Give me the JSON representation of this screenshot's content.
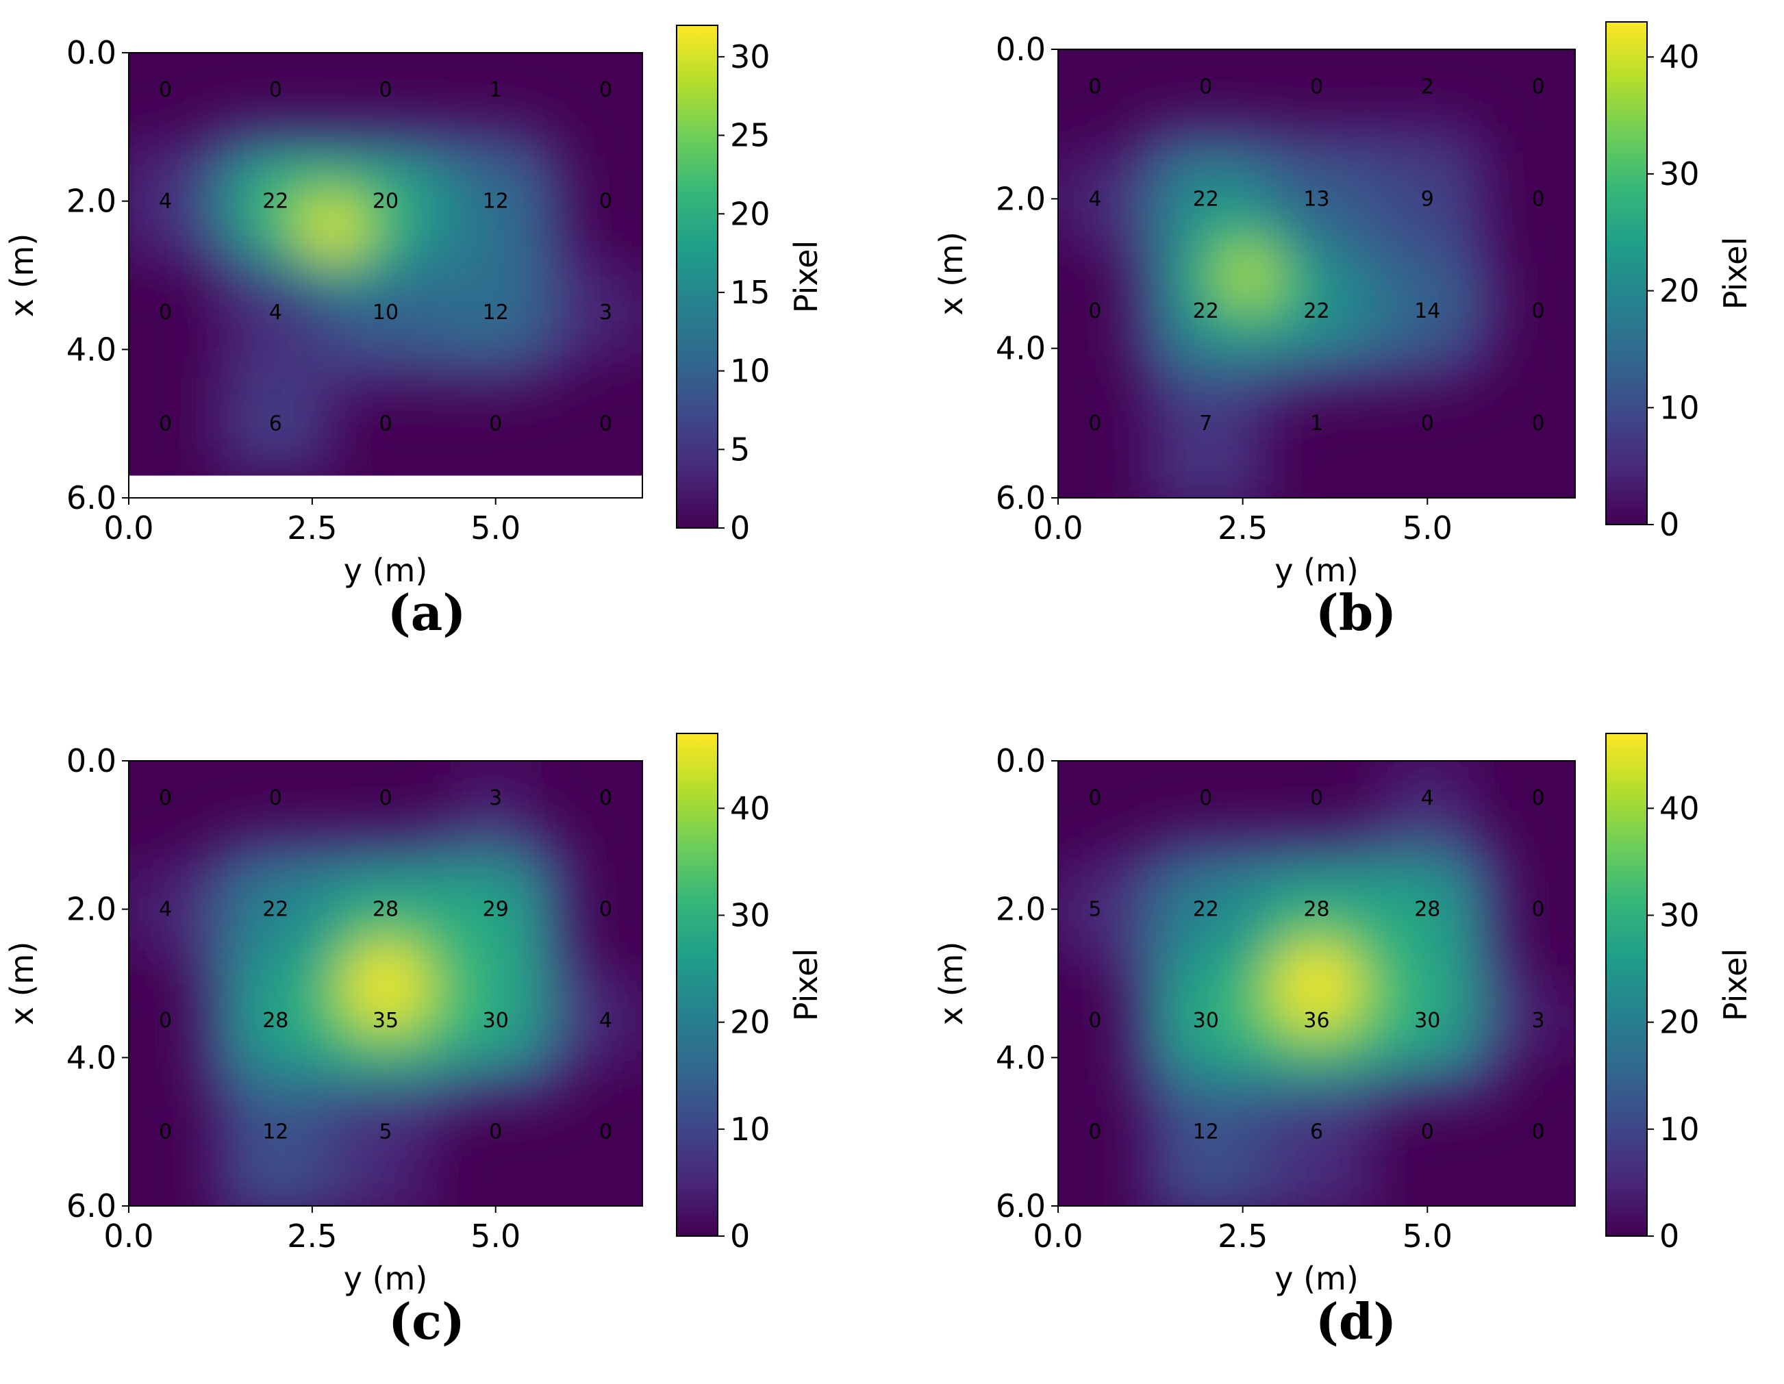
{
  "chart_data": [
    {
      "type": "heatmap",
      "panel_label": "(a)",
      "xlabel": "y (m)",
      "ylabel": "x (m)",
      "x_ticks": [
        "0.0",
        "2.5",
        "5.0"
      ],
      "y_ticks": [
        "0.0",
        "2.0",
        "4.0",
        "6.0"
      ],
      "xlim": [
        0,
        7
      ],
      "ylim": [
        6,
        0
      ],
      "data_extent_rows": 5.7,
      "colorbar": {
        "label": "Pixel",
        "range": [
          0,
          32
        ],
        "ticks": [
          "0",
          "5",
          "10",
          "15",
          "20",
          "25",
          "30"
        ]
      },
      "grid_x": [
        0.5,
        2.0,
        3.5,
        5.0,
        6.5
      ],
      "grid_y": [
        0.5,
        2.0,
        3.5,
        5.0
      ],
      "cell_values": [
        [
          0,
          0,
          0,
          1,
          0
        ],
        [
          4,
          22,
          20,
          12,
          0
        ],
        [
          0,
          4,
          10,
          12,
          3
        ],
        [
          0,
          6,
          0,
          0,
          0
        ]
      ],
      "hotspot": [
        2.8,
        2.5
      ]
    },
    {
      "type": "heatmap",
      "panel_label": "(b)",
      "xlabel": "y (m)",
      "ylabel": "x (m)",
      "x_ticks": [
        "0.0",
        "2.5",
        "5.0"
      ],
      "y_ticks": [
        "0.0",
        "2.0",
        "4.0",
        "6.0"
      ],
      "xlim": [
        0,
        7
      ],
      "ylim": [
        6,
        0
      ],
      "data_extent_rows": 6.0,
      "colorbar": {
        "label": "Pixel",
        "range": [
          0,
          43
        ],
        "ticks": [
          "0",
          "10",
          "20",
          "30",
          "40"
        ]
      },
      "grid_x": [
        0.5,
        2.0,
        3.5,
        5.0,
        6.5
      ],
      "grid_y": [
        0.5,
        2.0,
        3.5,
        5.0
      ],
      "cell_values": [
        [
          0,
          0,
          0,
          2,
          0
        ],
        [
          4,
          22,
          13,
          9,
          0
        ],
        [
          0,
          22,
          22,
          14,
          0
        ],
        [
          0,
          7,
          1,
          0,
          0
        ]
      ],
      "hotspot": [
        2.6,
        3.0
      ]
    },
    {
      "type": "heatmap",
      "panel_label": "(c)",
      "xlabel": "y (m)",
      "ylabel": "x (m)",
      "x_ticks": [
        "0.0",
        "2.5",
        "5.0"
      ],
      "y_ticks": [
        "0.0",
        "2.0",
        "4.0",
        "6.0"
      ],
      "xlim": [
        0,
        7
      ],
      "ylim": [
        6,
        0
      ],
      "data_extent_rows": 6.0,
      "colorbar": {
        "label": "Pixel",
        "range": [
          0,
          47
        ],
        "ticks": [
          "0",
          "10",
          "20",
          "30",
          "40"
        ]
      },
      "grid_x": [
        0.5,
        2.0,
        3.5,
        5.0,
        6.5
      ],
      "grid_y": [
        0.5,
        2.0,
        3.5,
        5.0
      ],
      "cell_values": [
        [
          0,
          0,
          0,
          3,
          0
        ],
        [
          4,
          22,
          28,
          29,
          0
        ],
        [
          0,
          28,
          35,
          30,
          4
        ],
        [
          0,
          12,
          5,
          0,
          0
        ]
      ],
      "hotspot": [
        3.5,
        2.95
      ]
    },
    {
      "type": "heatmap",
      "panel_label": "(d)",
      "xlabel": "y (m)",
      "ylabel": "x (m)",
      "x_ticks": [
        "0.0",
        "2.5",
        "5.0"
      ],
      "y_ticks": [
        "0.0",
        "2.0",
        "4.0",
        "6.0"
      ],
      "xlim": [
        0,
        7
      ],
      "ylim": [
        6,
        0
      ],
      "data_extent_rows": 6.0,
      "colorbar": {
        "label": "Pixel",
        "range": [
          0,
          47
        ],
        "ticks": [
          "0",
          "10",
          "20",
          "30",
          "40"
        ]
      },
      "grid_x": [
        0.5,
        2.0,
        3.5,
        5.0,
        6.5
      ],
      "grid_y": [
        0.5,
        2.0,
        3.5,
        5.0
      ],
      "cell_values": [
        [
          0,
          0,
          0,
          4,
          0
        ],
        [
          5,
          22,
          28,
          28,
          0
        ],
        [
          0,
          30,
          36,
          30,
          3
        ],
        [
          0,
          12,
          6,
          0,
          0
        ]
      ],
      "hotspot": [
        3.5,
        2.95
      ]
    }
  ],
  "colormap": {
    "name": "viridis",
    "stops": [
      "#440154",
      "#482878",
      "#3e4989",
      "#31688e",
      "#26828e",
      "#1f9e89",
      "#35b779",
      "#6ece58",
      "#b5de2b",
      "#fde725"
    ]
  }
}
